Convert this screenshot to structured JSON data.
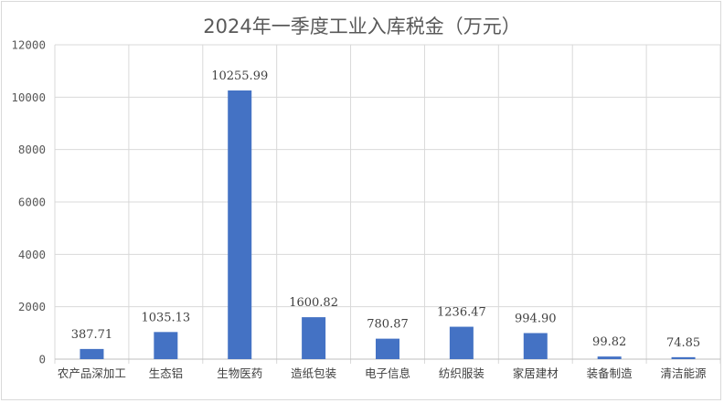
{
  "chart_data": {
    "type": "bar",
    "title": "2024年一季度工业入库税金（万元）",
    "xlabel": "",
    "ylabel": "",
    "categories": [
      "农产品深加工",
      "生态铝",
      "生物医药",
      "造纸包装",
      "电子信息",
      "纺织服装",
      "家居建材",
      "装备制造",
      "清洁能源"
    ],
    "values": [
      387.71,
      1035.13,
      10255.99,
      1600.82,
      780.87,
      1236.47,
      994.9,
      99.82,
      74.85
    ],
    "data_labels": [
      "387.71",
      "1035.13",
      "10255.99",
      "1600.82",
      "780.87",
      "1236.47",
      "994.90",
      "99.82",
      "74.85"
    ],
    "yticks": [
      "0",
      "2000",
      "4000",
      "6000",
      "8000",
      "10000",
      "12000"
    ],
    "ylim": [
      0,
      12000
    ],
    "grid": "horizontal and vertical",
    "legend": "none",
    "bar_color": "#4472C4"
  }
}
